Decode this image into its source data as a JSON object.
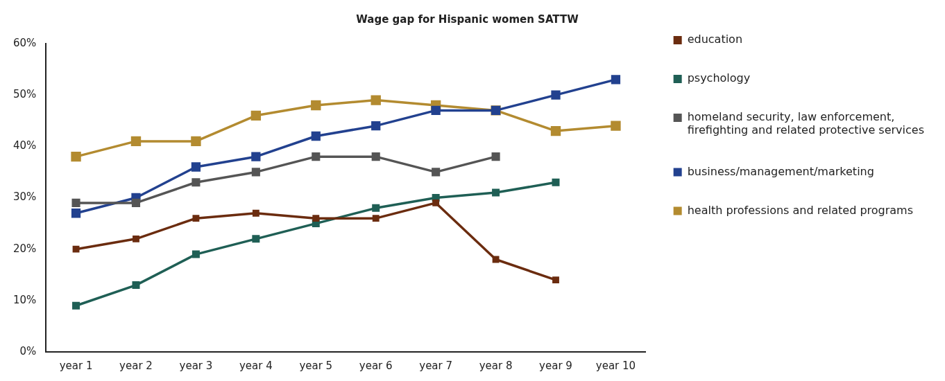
{
  "chart_data": {
    "type": "line",
    "title": "Wage gap for Hispanic women SATTW",
    "categories": [
      "year 1",
      "year 2",
      "year 3",
      "year 4",
      "year 5",
      "year 6",
      "year 7",
      "year 8",
      "year 9",
      "year 10"
    ],
    "series": [
      {
        "name": "education",
        "color": "#6b2c0f",
        "values": [
          20,
          22,
          26,
          27,
          26,
          26,
          29,
          18,
          14,
          null
        ]
      },
      {
        "name": "psychology",
        "color": "#1f5f55",
        "values": [
          9,
          13,
          19,
          22,
          25,
          28,
          30,
          31,
          33,
          null
        ]
      },
      {
        "name": "homeland security, law enforcement, firefighting and related protective services",
        "color": "#555555",
        "values": [
          29,
          29,
          33,
          35,
          38,
          38,
          35,
          38,
          null,
          null
        ]
      },
      {
        "name": "business/management/marketing",
        "color": "#22418f",
        "values": [
          27,
          30,
          36,
          38,
          42,
          44,
          47,
          47,
          50,
          53
        ]
      },
      {
        "name": "health professions and related programs",
        "color": "#b38b30",
        "values": [
          38,
          41,
          41,
          46,
          48,
          49,
          48,
          47,
          43,
          44
        ]
      }
    ],
    "ylim": [
      0,
      60
    ],
    "yticks": [
      {
        "value": 0,
        "label": "0%"
      },
      {
        "value": 10,
        "label": "10%"
      },
      {
        "value": 20,
        "label": "20%"
      },
      {
        "value": 30,
        "label": "30%"
      },
      {
        "value": 40,
        "label": "40%"
      },
      {
        "value": 50,
        "label": "50%"
      },
      {
        "value": 60,
        "label": "60%"
      }
    ],
    "grid": false,
    "legend": "right",
    "marker": "square",
    "line_style": "solid"
  }
}
